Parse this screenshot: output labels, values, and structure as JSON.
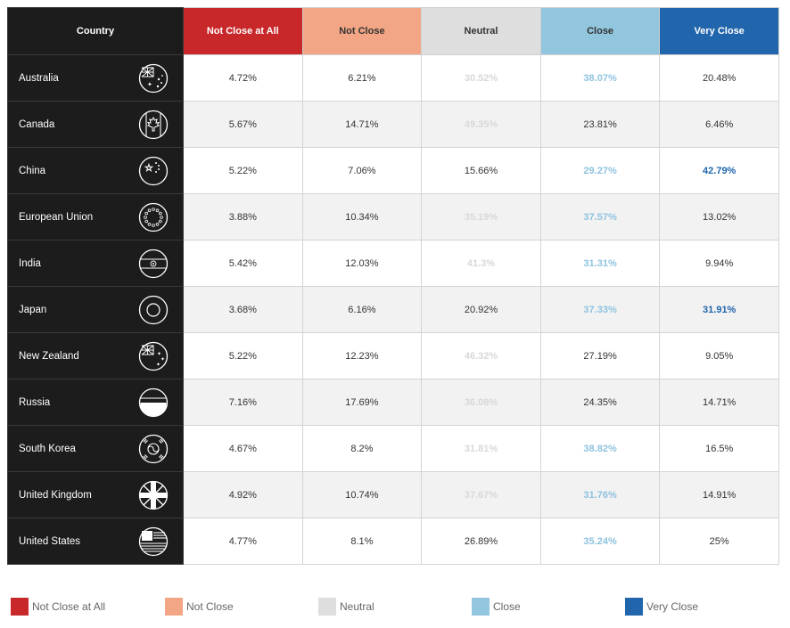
{
  "chart_data": {
    "type": "table",
    "columns": [
      "Country",
      "Not Close at All",
      "Not Close",
      "Neutral",
      "Close",
      "Very Close"
    ],
    "rows": [
      {
        "country": "Australia",
        "flag": "australia-flag-icon",
        "values": [
          "4.72%",
          "6.21%",
          "30.52%",
          "38.07%",
          "20.48%"
        ],
        "styles": [
          "",
          "",
          "faint",
          "close",
          ""
        ]
      },
      {
        "country": "Canada",
        "flag": "canada-flag-icon",
        "values": [
          "5.67%",
          "14.71%",
          "49.35%",
          "23.81%",
          "6.46%"
        ],
        "styles": [
          "",
          "",
          "faint",
          "",
          ""
        ]
      },
      {
        "country": "China",
        "flag": "china-flag-icon",
        "values": [
          "5.22%",
          "7.06%",
          "15.66%",
          "29.27%",
          "42.79%"
        ],
        "styles": [
          "",
          "",
          "",
          "close",
          "vclose"
        ]
      },
      {
        "country": "European Union",
        "flag": "eu-flag-icon",
        "values": [
          "3.88%",
          "10.34%",
          "35.19%",
          "37.57%",
          "13.02%"
        ],
        "styles": [
          "",
          "",
          "faint",
          "close",
          ""
        ]
      },
      {
        "country": "India",
        "flag": "india-flag-icon",
        "values": [
          "5.42%",
          "12.03%",
          "41.3%",
          "31.31%",
          "9.94%"
        ],
        "styles": [
          "",
          "",
          "faint",
          "close",
          ""
        ]
      },
      {
        "country": "Japan",
        "flag": "japan-flag-icon",
        "values": [
          "3.68%",
          "6.16%",
          "20.92%",
          "37.33%",
          "31.91%"
        ],
        "styles": [
          "",
          "",
          "",
          "close",
          "vclose"
        ]
      },
      {
        "country": "New Zealand",
        "flag": "new-zealand-flag-icon",
        "values": [
          "5.22%",
          "12.23%",
          "46.32%",
          "27.19%",
          "9.05%"
        ],
        "styles": [
          "",
          "",
          "faint",
          "",
          ""
        ]
      },
      {
        "country": "Russia",
        "flag": "russia-flag-icon",
        "values": [
          "7.16%",
          "17.69%",
          "36.08%",
          "24.35%",
          "14.71%"
        ],
        "styles": [
          "",
          "",
          "faint",
          "",
          ""
        ]
      },
      {
        "country": "South Korea",
        "flag": "south-korea-flag-icon",
        "values": [
          "4.67%",
          "8.2%",
          "31.81%",
          "38.82%",
          "16.5%"
        ],
        "styles": [
          "",
          "",
          "faint",
          "close",
          ""
        ]
      },
      {
        "country": "United Kingdom",
        "flag": "uk-flag-icon",
        "values": [
          "4.92%",
          "10.74%",
          "37.67%",
          "31.76%",
          "14.91%"
        ],
        "styles": [
          "",
          "",
          "faint",
          "close",
          ""
        ]
      },
      {
        "country": "United States",
        "flag": "us-flag-icon",
        "values": [
          "4.77%",
          "8.1%",
          "26.89%",
          "35.24%",
          "25%"
        ],
        "styles": [
          "",
          "",
          "",
          "close",
          ""
        ]
      }
    ],
    "legend": [
      {
        "label": "Not Close at All",
        "color": "#c8282a"
      },
      {
        "label": "Not Close",
        "color": "#f3a685"
      },
      {
        "label": "Neutral",
        "color": "#dedede"
      },
      {
        "label": "Close",
        "color": "#92c5de"
      },
      {
        "label": "Very Close",
        "color": "#2166ac"
      }
    ]
  }
}
